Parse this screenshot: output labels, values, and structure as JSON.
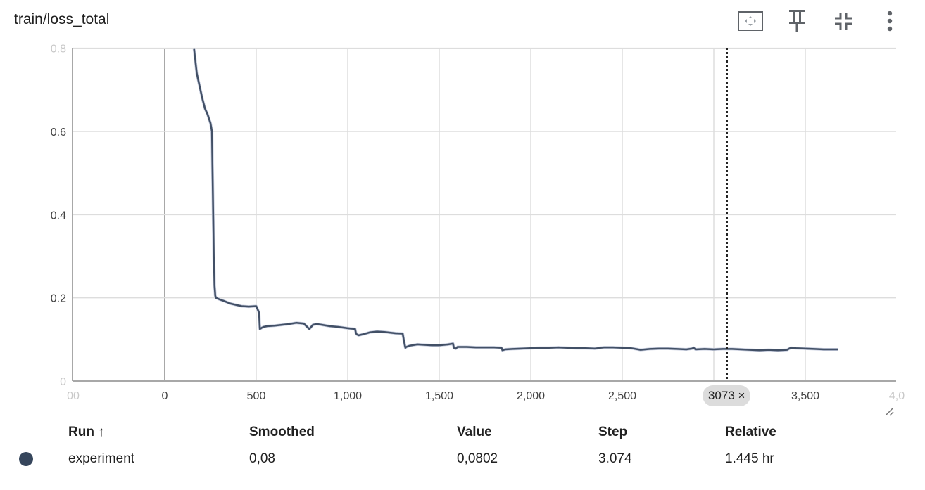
{
  "header": {
    "title": "train/loss_total",
    "icons": [
      "fit-domain-icon",
      "pin-icon",
      "collapse-icon",
      "more-vert-icon"
    ]
  },
  "chart_data": {
    "type": "line",
    "title": "train/loss_total",
    "xlim": [
      -500,
      4000
    ],
    "ylim": [
      0,
      0.8
    ],
    "x_ticks": [
      "00",
      "0",
      "500",
      "1,000",
      "1,500",
      "2,000",
      "2,500",
      "3",
      "3,500",
      "4,0"
    ],
    "y_ticks": [
      "0",
      "0.2",
      "0.4",
      "0.6",
      "0.8"
    ],
    "grid": true,
    "cursor_step": 3073,
    "cursor_label": "3073 ×",
    "color": "#425066",
    "series": [
      {
        "name": "experiment",
        "x": [
          160,
          175,
          190,
          205,
          220,
          235,
          250,
          258,
          263,
          268,
          272,
          276,
          280,
          290,
          300,
          320,
          360,
          420,
          460,
          500,
          515,
          520,
          530,
          540,
          560,
          600,
          640,
          680,
          720,
          760,
          790,
          800,
          810,
          830,
          860,
          900,
          950,
          1000,
          1040,
          1045,
          1050,
          1060,
          1090,
          1120,
          1160,
          1200,
          1260,
          1300,
          1310,
          1315,
          1320,
          1340,
          1380,
          1420,
          1460,
          1500,
          1550,
          1575,
          1580,
          1590,
          1600,
          1650,
          1700,
          1750,
          1800,
          1840,
          1845,
          1860,
          1900,
          1950,
          2000,
          2050,
          2100,
          2150,
          2200,
          2250,
          2300,
          2350,
          2380,
          2400,
          2450,
          2500,
          2550,
          2600,
          2650,
          2700,
          2750,
          2800,
          2850,
          2880,
          2890,
          2900,
          2950,
          3000,
          3050,
          3073,
          3100,
          3150,
          3200,
          3250,
          3300,
          3350,
          3400,
          3420,
          3450,
          3500,
          3550,
          3600,
          3650,
          3680
        ],
        "values": [
          0.8,
          0.74,
          0.71,
          0.68,
          0.655,
          0.64,
          0.62,
          0.6,
          0.45,
          0.3,
          0.23,
          0.205,
          0.2,
          0.198,
          0.196,
          0.193,
          0.186,
          0.18,
          0.179,
          0.18,
          0.165,
          0.125,
          0.128,
          0.13,
          0.132,
          0.133,
          0.135,
          0.137,
          0.14,
          0.138,
          0.125,
          0.13,
          0.135,
          0.137,
          0.135,
          0.132,
          0.13,
          0.127,
          0.125,
          0.115,
          0.112,
          0.11,
          0.113,
          0.117,
          0.119,
          0.118,
          0.115,
          0.114,
          0.09,
          0.08,
          0.082,
          0.085,
          0.088,
          0.087,
          0.086,
          0.086,
          0.088,
          0.09,
          0.08,
          0.078,
          0.082,
          0.082,
          0.081,
          0.081,
          0.081,
          0.08,
          0.074,
          0.076,
          0.077,
          0.078,
          0.079,
          0.08,
          0.08,
          0.081,
          0.08,
          0.079,
          0.079,
          0.078,
          0.08,
          0.081,
          0.081,
          0.08,
          0.079,
          0.075,
          0.077,
          0.078,
          0.078,
          0.077,
          0.076,
          0.078,
          0.08,
          0.076,
          0.077,
          0.076,
          0.077,
          0.077,
          0.077,
          0.076,
          0.075,
          0.074,
          0.075,
          0.074,
          0.075,
          0.08,
          0.079,
          0.078,
          0.077,
          0.076,
          0.076,
          0.076
        ]
      }
    ]
  },
  "table": {
    "headers": {
      "run": "Run ↑",
      "smoothed": "Smoothed",
      "value": "Value",
      "step": "Step",
      "relative": "Relative"
    },
    "rows": [
      {
        "color": "#36465c",
        "run": "experiment",
        "smoothed": "0,08",
        "value": "0,0802",
        "step": "3.074",
        "relative": "1.445 hr"
      }
    ]
  }
}
